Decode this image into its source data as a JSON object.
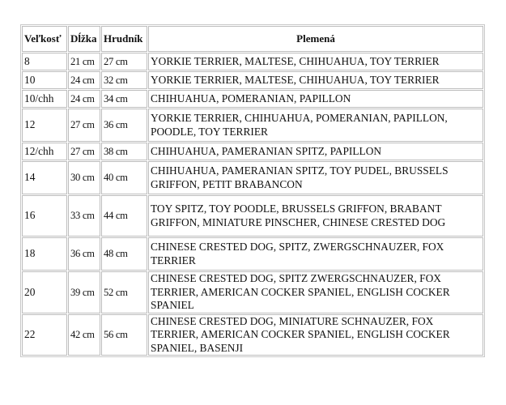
{
  "table": {
    "headers": [
      "Veľkosť",
      "Dĺžka",
      "Hrudník",
      "Plemená"
    ],
    "rows": [
      {
        "size": "8",
        "length": "21 cm",
        "chest": "27 cm",
        "breeds": "YORKIE TERRIER, MALTESE, CHIHUAHUA, TOY TERRIER"
      },
      {
        "size": "10",
        "length": "24 cm",
        "chest": "32 cm",
        "breeds": "YORKIE TERRIER, MALTESE, CHIHUAHUA, TOY TERRIER"
      },
      {
        "size": "10/chh",
        "length": "24 cm",
        "chest": "34 cm",
        "breeds": "CHIHUAHUA, POMERANIAN, PAPILLON"
      },
      {
        "size": "12",
        "length": "27 cm",
        "chest": "36 cm",
        "breeds": "YORKIE TERRIER, CHIHUAHUA, POMERANIAN, PAPILLON, POODLE, TOY TERRIER"
      },
      {
        "size": "12/chh",
        "length": "27 cm",
        "chest": "38 cm",
        "breeds": "CHIHUAHUA, PAMERANIAN SPITZ, PAPILLON"
      },
      {
        "size": "14",
        "length": "30 cm",
        "chest": "40 cm",
        "breeds": "CHIHUAHUA, PAMERANIAN SPITZ, TOY PUDEL, BRUSSELS GRIFFON, PETIT BRABANCON"
      },
      {
        "size": "16",
        "length": "33 cm",
        "chest": "44 cm",
        "breeds": "TOY SPITZ, TOY POODLE, BRUSSELS GRIFFON, BRABANT GRIFFON, MINIATURE PINSCHER, CHINESE CRESTED DOG"
      },
      {
        "size": "18",
        "length": "36 cm",
        "chest": "48 cm",
        "breeds": "CHINESE CRESTED DOG, SPITZ, ZWERGSCHNAUZER, FOX TERRIER"
      },
      {
        "size": "20",
        "length": "39 cm",
        "chest": "52 cm",
        "breeds": "CHINESE CRESTED DOG, SPITZ ZWERGSCHNAUZER, FOX TERRIER, AMERICAN COCKER SPANIEL, ENGLISH COCKER SPANIEL"
      },
      {
        "size": "22",
        "length": "42 cm",
        "chest": "56 cm",
        "breeds": "CHINESE CRESTED DOG, MINIATURE SCHNAUZER, FOX TERRIER, AMERICAN COCKER SPANIEL, ENGLISH COCKER SPANIEL, BASENJI"
      }
    ]
  }
}
